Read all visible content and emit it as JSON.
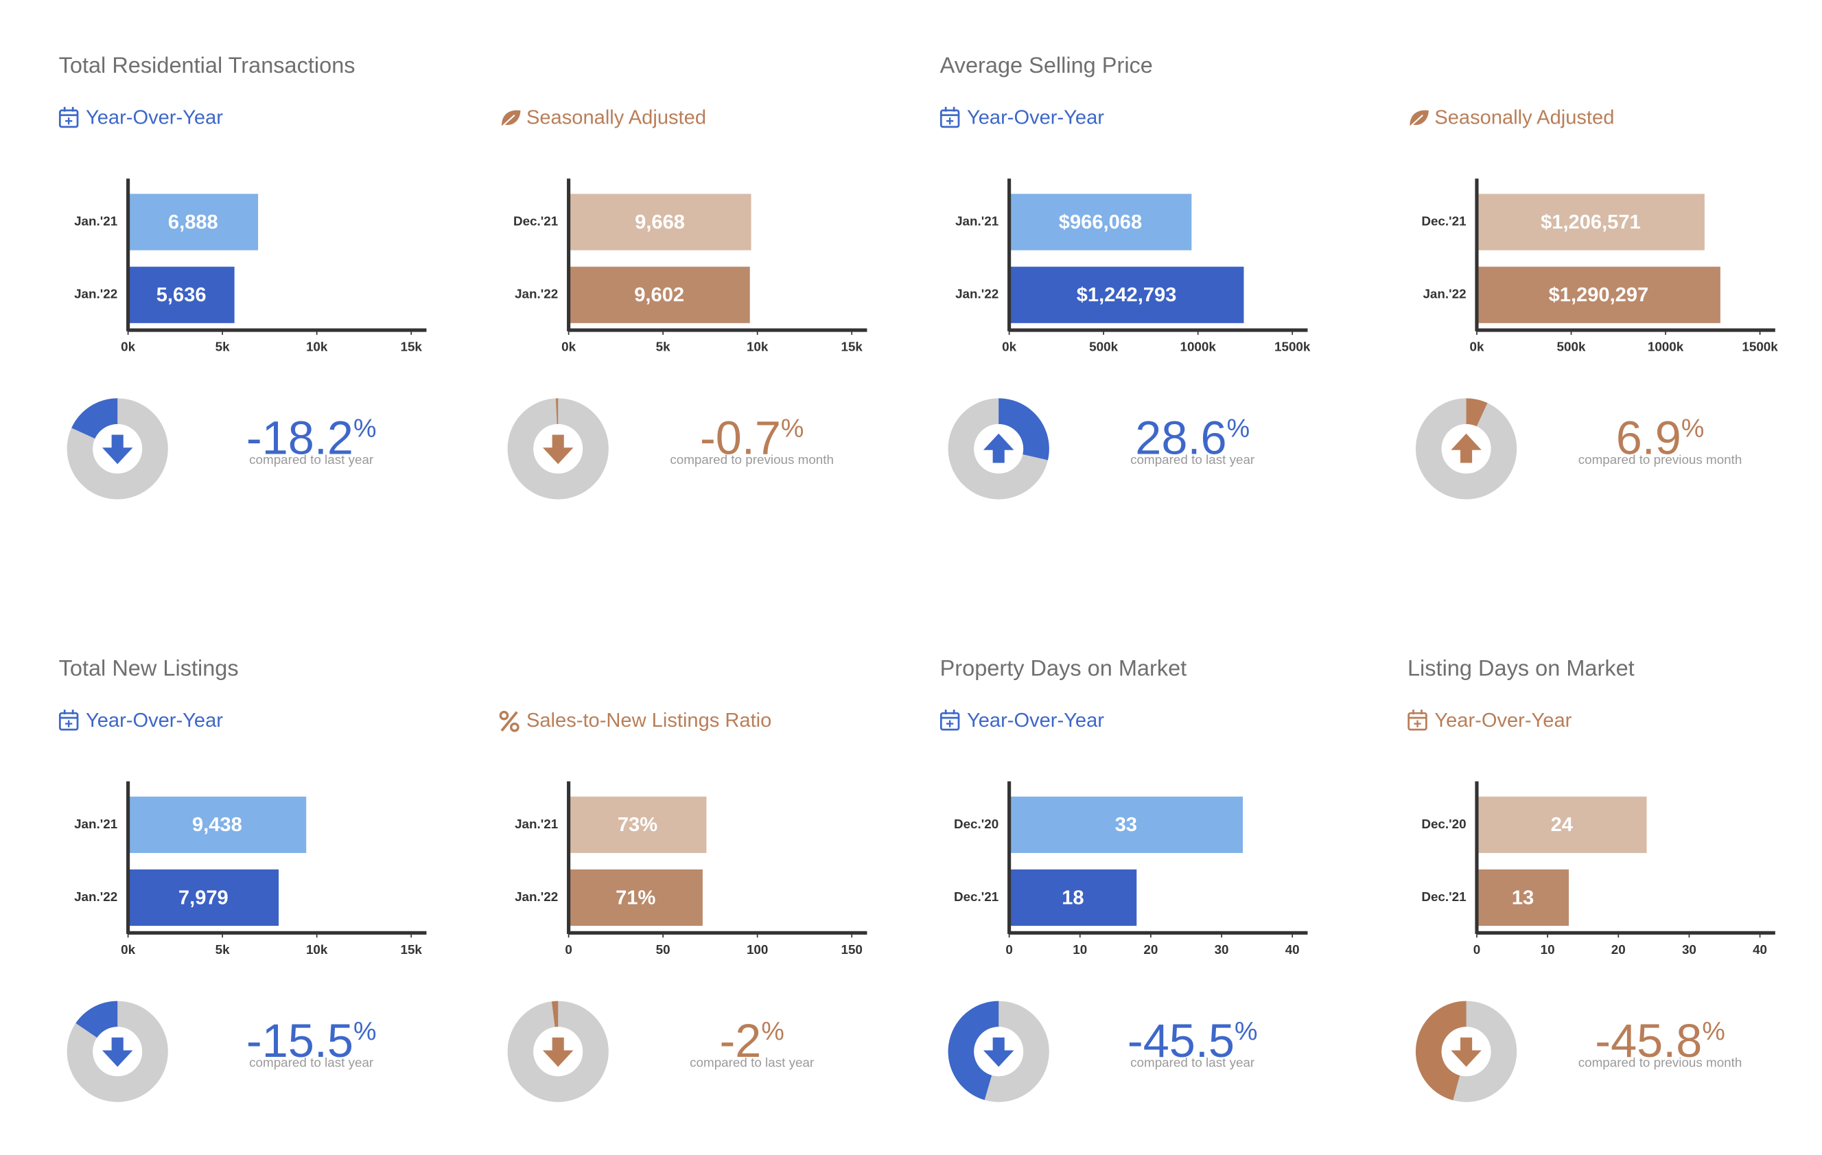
{
  "chart_data": [
    {
      "type": "bar",
      "title": "Total Residential Transactions",
      "subtitle": "Year-Over-Year",
      "categories": [
        "Jan.'21",
        "Jan.'22"
      ],
      "values": [
        6888,
        5636
      ],
      "value_labels": [
        "6,888",
        "5,636"
      ],
      "colors": [
        "#80b1e8",
        "#3b61c4"
      ],
      "accent": "#3d67c9",
      "xlim": [
        0,
        15000
      ],
      "xticks": [
        {
          "value": 0,
          "label": "0k"
        },
        {
          "value": 5000,
          "label": "5k"
        },
        {
          "value": 10000,
          "label": "10k"
        },
        {
          "value": 15000,
          "label": "15k"
        }
      ],
      "change": -18.2,
      "change_unit": "%",
      "change_caption": "compared to last year"
    },
    {
      "type": "bar",
      "subtitle": "Seasonally Adjusted",
      "categories": [
        "Dec.'21",
        "Jan.'22"
      ],
      "values": [
        9668,
        9602
      ],
      "value_labels": [
        "9,668",
        "9,602"
      ],
      "colors": [
        "#d7bba7",
        "#bb8a6b"
      ],
      "accent": "#b97e58",
      "xlim": [
        0,
        15000
      ],
      "xticks": [
        {
          "value": 0,
          "label": "0k"
        },
        {
          "value": 5000,
          "label": "5k"
        },
        {
          "value": 10000,
          "label": "10k"
        },
        {
          "value": 15000,
          "label": "15k"
        }
      ],
      "change": -0.7,
      "change_unit": "%",
      "change_caption": "compared to previous month"
    },
    {
      "type": "bar",
      "title": "Average Selling Price",
      "subtitle": "Year-Over-Year",
      "categories": [
        "Jan.'21",
        "Jan.'22"
      ],
      "values": [
        966068,
        1242793
      ],
      "value_labels": [
        "$966,068",
        "$1,242,793"
      ],
      "colors": [
        "#80b1e8",
        "#3b61c4"
      ],
      "accent": "#3d67c9",
      "xlim": [
        0,
        1500000
      ],
      "xticks": [
        {
          "value": 0,
          "label": "0k"
        },
        {
          "value": 500000,
          "label": "500k"
        },
        {
          "value": 1000000,
          "label": "1000k"
        },
        {
          "value": 1500000,
          "label": "1500k"
        }
      ],
      "change": 28.6,
      "change_unit": "%",
      "change_caption": "compared to last year"
    },
    {
      "type": "bar",
      "subtitle": "Seasonally Adjusted",
      "categories": [
        "Dec.'21",
        "Jan.'22"
      ],
      "values": [
        1206571,
        1290297
      ],
      "value_labels": [
        "$1,206,571",
        "$1,290,297"
      ],
      "colors": [
        "#d7bba7",
        "#bb8a6b"
      ],
      "accent": "#b97e58",
      "xlim": [
        0,
        1500000
      ],
      "xticks": [
        {
          "value": 0,
          "label": "0k"
        },
        {
          "value": 500000,
          "label": "500k"
        },
        {
          "value": 1000000,
          "label": "1000k"
        },
        {
          "value": 1500000,
          "label": "1500k"
        }
      ],
      "change": 6.9,
      "change_unit": "%",
      "change_caption": "compared to previous month"
    },
    {
      "type": "bar",
      "title": "Total New Listings",
      "subtitle": "Year-Over-Year",
      "categories": [
        "Jan.'21",
        "Jan.'22"
      ],
      "values": [
        9438,
        7979
      ],
      "value_labels": [
        "9,438",
        "7,979"
      ],
      "colors": [
        "#80b1e8",
        "#3b61c4"
      ],
      "accent": "#3d67c9",
      "xlim": [
        0,
        15000
      ],
      "xticks": [
        {
          "value": 0,
          "label": "0k"
        },
        {
          "value": 5000,
          "label": "5k"
        },
        {
          "value": 10000,
          "label": "10k"
        },
        {
          "value": 15000,
          "label": "15k"
        }
      ],
      "change": -15.5,
      "change_unit": "%",
      "change_caption": "compared to last year"
    },
    {
      "type": "bar",
      "subtitle": "Sales-to-New Listings Ratio",
      "categories": [
        "Jan.'21",
        "Jan.'22"
      ],
      "values": [
        73,
        71
      ],
      "value_labels": [
        "73%",
        "71%"
      ],
      "colors": [
        "#d7bba7",
        "#bb8a6b"
      ],
      "accent": "#b97e58",
      "xlim": [
        0,
        150
      ],
      "xticks": [
        0,
        50,
        100,
        150
      ],
      "change": -2,
      "change_unit": "%",
      "change_caption": "compared to last year"
    },
    {
      "type": "bar",
      "title": "Property Days on Market",
      "subtitle": "Year-Over-Year",
      "categories": [
        "Dec.'20",
        "Dec.'21"
      ],
      "values": [
        33,
        18
      ],
      "colors": [
        "#80b1e8",
        "#3b61c4"
      ],
      "accent": "#3d67c9",
      "xlim": [
        0,
        40
      ],
      "xticks": [
        0,
        10,
        20,
        30,
        40
      ],
      "change": -45.5,
      "change_unit": "%",
      "change_caption": "compared to last year"
    },
    {
      "type": "bar",
      "title": "Listing Days on Market",
      "subtitle": "Year-Over-Year",
      "categories": [
        "Dec.'20",
        "Dec.'21"
      ],
      "values": [
        24,
        13
      ],
      "colors": [
        "#d7bba7",
        "#bb8a6b"
      ],
      "accent": "#b97e58",
      "xlim": [
        0,
        40
      ],
      "xticks": [
        0,
        10,
        20,
        30,
        40
      ],
      "change": -45.8,
      "change_unit": "%",
      "change_caption": "compared to previous month"
    }
  ]
}
